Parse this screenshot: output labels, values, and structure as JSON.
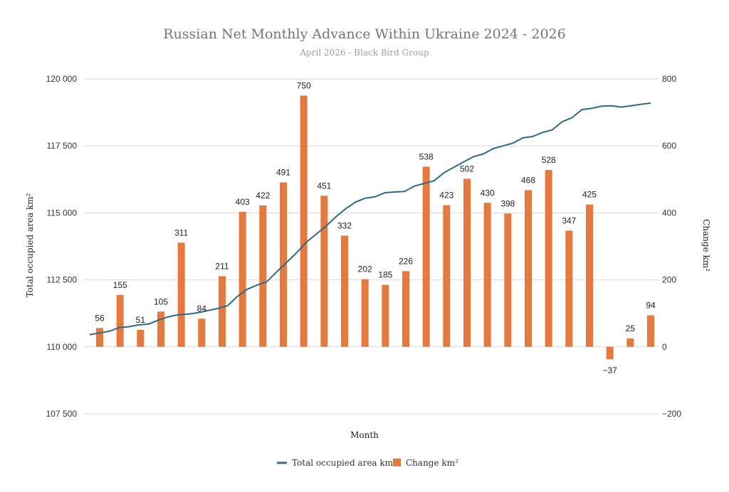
{
  "chart_data": {
    "type": "bar+line",
    "title": "Russian Net Monthly Advance Within Ukraine 2024 - 2026",
    "subtitle": "April 2026 - Black Bird Group",
    "xlabel": "Month",
    "ylabel_left": "Total occupied area km²",
    "ylabel_right": "Change km²",
    "ylim_left": [
      107500,
      120000
    ],
    "yticks_left": [
      "107 500",
      "110 000",
      "112 500",
      "115 000",
      "117 500",
      "120 000"
    ],
    "ylim_right": [
      -200,
      800
    ],
    "yticks_right": [
      "−200",
      "0",
      "200",
      "400",
      "600",
      "800"
    ],
    "grid": true,
    "legend_position": "bottom",
    "bar_series": {
      "name": "Change km²",
      "color": "#e6793b",
      "values": [
        56,
        155,
        51,
        105,
        311,
        84,
        211,
        403,
        422,
        491,
        750,
        451,
        332,
        202,
        185,
        226,
        538,
        423,
        502,
        430,
        398,
        468,
        528,
        347,
        425,
        -37,
        25,
        94
      ],
      "labels": [
        "56",
        "155",
        "51",
        "105",
        "311",
        "84",
        "211",
        "403",
        "422",
        "491",
        "750",
        "451",
        "332",
        "202",
        "185",
        "226",
        "538",
        "423",
        "502",
        "430",
        "398",
        "468",
        "528",
        "347",
        "425",
        "−37",
        "25",
        "94"
      ]
    },
    "line_series": {
      "name": "Total occupied area km²",
      "color": "#2c6a8a",
      "values": [
        110450,
        110520,
        110580,
        110720,
        110750,
        110820,
        110850,
        111000,
        111120,
        111200,
        111220,
        111270,
        111350,
        111430,
        111530,
        111880,
        112150,
        112300,
        112430,
        112800,
        113150,
        113500,
        113900,
        114200,
        114500,
        114850,
        115150,
        115400,
        115550,
        115600,
        115750,
        115780,
        115800,
        116000,
        116100,
        116200,
        116500,
        116700,
        116900,
        117100,
        117200,
        117400,
        117500,
        117600,
        117800,
        117850,
        118000,
        118100,
        118400,
        118550,
        118850,
        118900,
        118980,
        119000,
        118950,
        119000,
        119050,
        119100
      ]
    }
  }
}
